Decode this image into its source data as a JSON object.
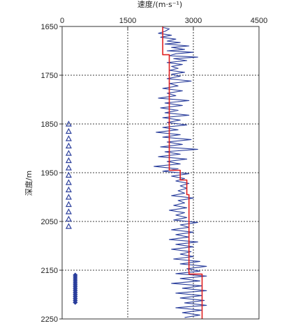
{
  "chart_data": {
    "type": "line",
    "title": "",
    "xlabel": "速度/(m·s⁻¹)",
    "ylabel": "深度/m",
    "x_axis_position": "top",
    "xlim": [
      0,
      4500
    ],
    "ylim": [
      1650,
      2250
    ],
    "y_inverted": true,
    "x_ticks": [
      0,
      1500,
      3000,
      4500
    ],
    "x_tick_labels": [
      "0",
      "1500",
      "3000",
      "4500"
    ],
    "y_ticks": [
      1650,
      1750,
      1850,
      1950,
      2050,
      2150,
      2250
    ],
    "y_tick_labels": [
      "1650",
      "1750",
      "1850",
      "1950",
      "2050",
      "2150",
      "2250"
    ],
    "grid": "dashed",
    "series": [
      {
        "name": "",
        "kind": "velocity log",
        "color": "#2a3e9c",
        "points": [
          [
            2300,
            1652
          ],
          [
            2450,
            1655
          ],
          [
            2350,
            1660
          ],
          [
            2200,
            1664
          ],
          [
            2500,
            1668
          ],
          [
            2250,
            1672
          ],
          [
            2600,
            1676
          ],
          [
            2400,
            1680
          ],
          [
            2700,
            1683
          ],
          [
            2350,
            1686
          ],
          [
            2900,
            1690
          ],
          [
            2500,
            1693
          ],
          [
            2800,
            1697
          ],
          [
            2400,
            1700
          ],
          [
            3000,
            1703
          ],
          [
            2600,
            1706
          ],
          [
            2450,
            1710
          ],
          [
            3100,
            1713
          ],
          [
            2550,
            1716
          ],
          [
            2850,
            1720
          ],
          [
            2400,
            1724
          ],
          [
            2750,
            1728
          ],
          [
            2500,
            1732
          ],
          [
            2650,
            1736
          ],
          [
            2450,
            1740
          ],
          [
            2800,
            1744
          ],
          [
            2500,
            1748
          ],
          [
            2700,
            1752
          ],
          [
            2400,
            1757
          ],
          [
            2950,
            1762
          ],
          [
            2450,
            1767
          ],
          [
            2650,
            1772
          ],
          [
            2300,
            1777
          ],
          [
            2750,
            1782
          ],
          [
            2400,
            1787
          ],
          [
            2600,
            1792
          ],
          [
            2200,
            1797
          ],
          [
            2900,
            1802
          ],
          [
            2350,
            1807
          ],
          [
            2750,
            1812
          ],
          [
            2250,
            1817
          ],
          [
            2650,
            1822
          ],
          [
            2350,
            1827
          ],
          [
            2900,
            1832
          ],
          [
            2300,
            1837
          ],
          [
            2700,
            1842
          ],
          [
            2400,
            1847
          ],
          [
            2850,
            1852
          ],
          [
            2300,
            1857
          ],
          [
            2650,
            1862
          ],
          [
            2150,
            1867
          ],
          [
            2700,
            1872
          ],
          [
            2300,
            1877
          ],
          [
            2950,
            1882
          ],
          [
            2400,
            1887
          ],
          [
            2750,
            1892
          ],
          [
            2250,
            1897
          ],
          [
            3100,
            1902
          ],
          [
            2350,
            1907
          ],
          [
            2700,
            1912
          ],
          [
            2200,
            1917
          ],
          [
            2850,
            1922
          ],
          [
            2400,
            1927
          ],
          [
            2700,
            1932
          ],
          [
            2100,
            1937
          ],
          [
            2650,
            1942
          ],
          [
            2300,
            1947
          ],
          [
            2900,
            1952
          ],
          [
            2500,
            1957
          ],
          [
            2800,
            1962
          ],
          [
            2600,
            1967
          ],
          [
            2900,
            1972
          ],
          [
            2700,
            1977
          ],
          [
            2850,
            1982
          ],
          [
            2650,
            1987
          ],
          [
            2800,
            1992
          ],
          [
            2500,
            1997
          ],
          [
            3000,
            2002
          ],
          [
            2650,
            2007
          ],
          [
            2800,
            2012
          ],
          [
            2550,
            2017
          ],
          [
            2850,
            2022
          ],
          [
            2450,
            2027
          ],
          [
            2800,
            2032
          ],
          [
            2600,
            2037
          ],
          [
            2850,
            2042
          ],
          [
            2550,
            2047
          ],
          [
            3100,
            2052
          ],
          [
            2700,
            2057
          ],
          [
            2900,
            2062
          ],
          [
            2500,
            2067
          ],
          [
            3000,
            2072
          ],
          [
            2600,
            2077
          ],
          [
            2900,
            2082
          ],
          [
            2450,
            2087
          ],
          [
            3100,
            2092
          ],
          [
            2600,
            2097
          ],
          [
            3000,
            2102
          ],
          [
            2500,
            2107
          ],
          [
            2950,
            2112
          ],
          [
            2700,
            2117
          ],
          [
            3000,
            2122
          ],
          [
            2550,
            2127
          ],
          [
            3150,
            2132
          ],
          [
            2700,
            2137
          ],
          [
            3300,
            2142
          ],
          [
            2850,
            2147
          ],
          [
            3150,
            2152
          ],
          [
            2600,
            2157
          ],
          [
            3300,
            2162
          ],
          [
            2700,
            2167
          ],
          [
            3150,
            2172
          ],
          [
            2500,
            2177
          ],
          [
            3200,
            2182
          ],
          [
            2750,
            2187
          ],
          [
            3300,
            2192
          ],
          [
            2600,
            2197
          ],
          [
            3200,
            2202
          ],
          [
            2700,
            2207
          ],
          [
            3250,
            2212
          ],
          [
            2800,
            2217
          ],
          [
            3300,
            2222
          ],
          [
            2600,
            2227
          ],
          [
            3200,
            2232
          ],
          [
            2750,
            2237
          ],
          [
            3150,
            2242
          ],
          [
            2800,
            2247
          ]
        ]
      },
      {
        "name": "",
        "kind": "interval velocity (step)",
        "color": "#e02020",
        "points": [
          [
            2300,
            1650
          ],
          [
            2300,
            1708
          ],
          [
            2450,
            1708
          ],
          [
            2450,
            1945
          ],
          [
            2700,
            1945
          ],
          [
            2700,
            1965
          ],
          [
            2850,
            1965
          ],
          [
            2850,
            1995
          ],
          [
            2900,
            1995
          ],
          [
            2900,
            2158
          ],
          [
            3200,
            2158
          ],
          [
            3200,
            2250
          ]
        ]
      },
      {
        "name": "",
        "kind": "triangle markers",
        "color": "#2a3e9c",
        "marker": "triangle",
        "points": [
          [
            150,
            1850
          ],
          [
            150,
            1865
          ],
          [
            150,
            1880
          ],
          [
            150,
            1895
          ],
          [
            150,
            1910
          ],
          [
            150,
            1925
          ],
          [
            150,
            1940
          ],
          [
            150,
            1955
          ],
          [
            150,
            1970
          ],
          [
            150,
            1985
          ],
          [
            150,
            2000
          ],
          [
            150,
            2015
          ],
          [
            150,
            2030
          ],
          [
            150,
            2045
          ],
          [
            150,
            2060
          ]
        ]
      },
      {
        "name": "",
        "kind": "diamond markers",
        "color": "#2a3e9c",
        "marker": "diamond",
        "points": [
          [
            300,
            2160
          ],
          [
            300,
            2164
          ],
          [
            300,
            2168
          ],
          [
            300,
            2172
          ],
          [
            300,
            2176
          ],
          [
            300,
            2180
          ],
          [
            300,
            2184
          ],
          [
            300,
            2188
          ],
          [
            300,
            2192
          ],
          [
            300,
            2196
          ],
          [
            300,
            2200
          ],
          [
            300,
            2204
          ],
          [
            300,
            2208
          ],
          [
            300,
            2212
          ],
          [
            300,
            2216
          ]
        ]
      }
    ]
  }
}
